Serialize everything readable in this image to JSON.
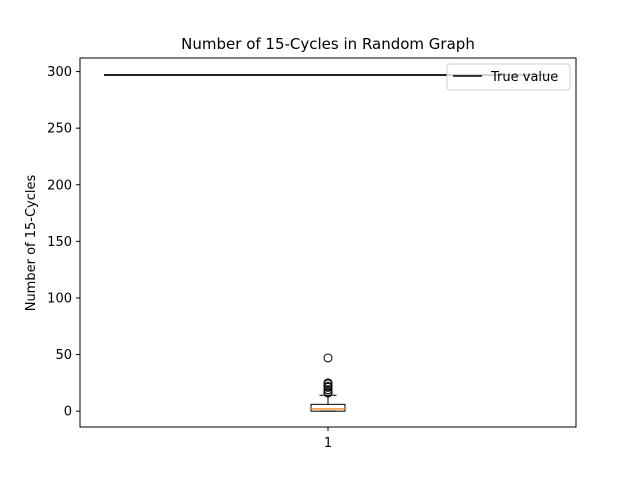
{
  "chart_data": {
    "type": "box",
    "title": "Number of 15-Cycles in Random Graph",
    "xlabel": "",
    "ylabel": "Number of 15-Cycles",
    "x_ticks": [
      "1"
    ],
    "y_ticks": [
      0,
      50,
      100,
      150,
      200,
      250,
      300
    ],
    "ylim": [
      -14,
      312
    ],
    "grid": false,
    "legend": {
      "position": "top-right",
      "entries": [
        {
          "label": "True value",
          "color": "#000000"
        }
      ]
    },
    "true_value": 297,
    "boxes": [
      {
        "category": "1",
        "whisker_low": 0,
        "q1": 0,
        "median": 2,
        "q3": 6,
        "whisker_high": 14,
        "outliers": [
          16,
          17,
          19,
          21,
          22,
          24,
          25,
          47
        ],
        "box_color": "#000000",
        "median_color": "#ff7f0e"
      }
    ]
  }
}
